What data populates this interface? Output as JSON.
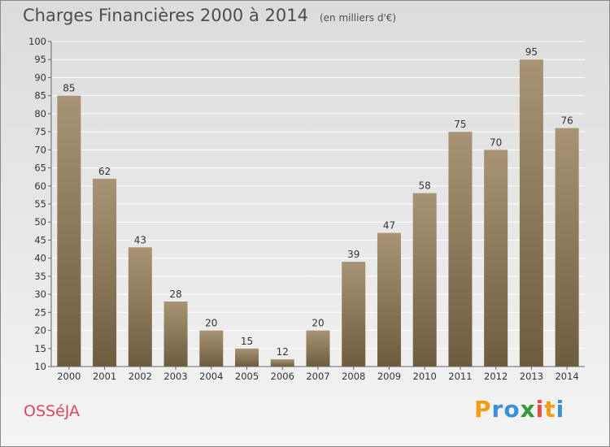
{
  "header": {
    "title": "Charges Financières 2000 à 2014",
    "subtitle": "(en milliers d'€)"
  },
  "footer": {
    "place": "OSSéJA",
    "logo_letters": [
      "P",
      "r",
      "o",
      "x",
      "i",
      "t",
      "i"
    ],
    "logo_colors": [
      "#f39c12",
      "#3a8fd8",
      "#3a8fd8",
      "#2e9c3a",
      "#e84c3d",
      "#f39c12",
      "#3a8fd8"
    ]
  },
  "chart_data": {
    "type": "bar",
    "categories": [
      "2000",
      "2001",
      "2002",
      "2003",
      "2004",
      "2005",
      "2006",
      "2007",
      "2008",
      "2009",
      "2010",
      "2011",
      "2012",
      "2013",
      "2014"
    ],
    "values": [
      85,
      62,
      43,
      28,
      20,
      15,
      12,
      20,
      39,
      47,
      58,
      75,
      70,
      95,
      76
    ],
    "title": "Charges Financières 2000 à 2014",
    "subtitle": "(en milliers d'€)",
    "ylim": [
      10,
      100
    ],
    "yticks": [
      10,
      15,
      20,
      25,
      30,
      35,
      40,
      45,
      50,
      55,
      60,
      65,
      70,
      75,
      80,
      85,
      90,
      95,
      100
    ],
    "grid": true,
    "bar_color_top": "#a89474",
    "bar_color_bottom": "#6e5c3f",
    "grid_color": "#ffffff"
  }
}
